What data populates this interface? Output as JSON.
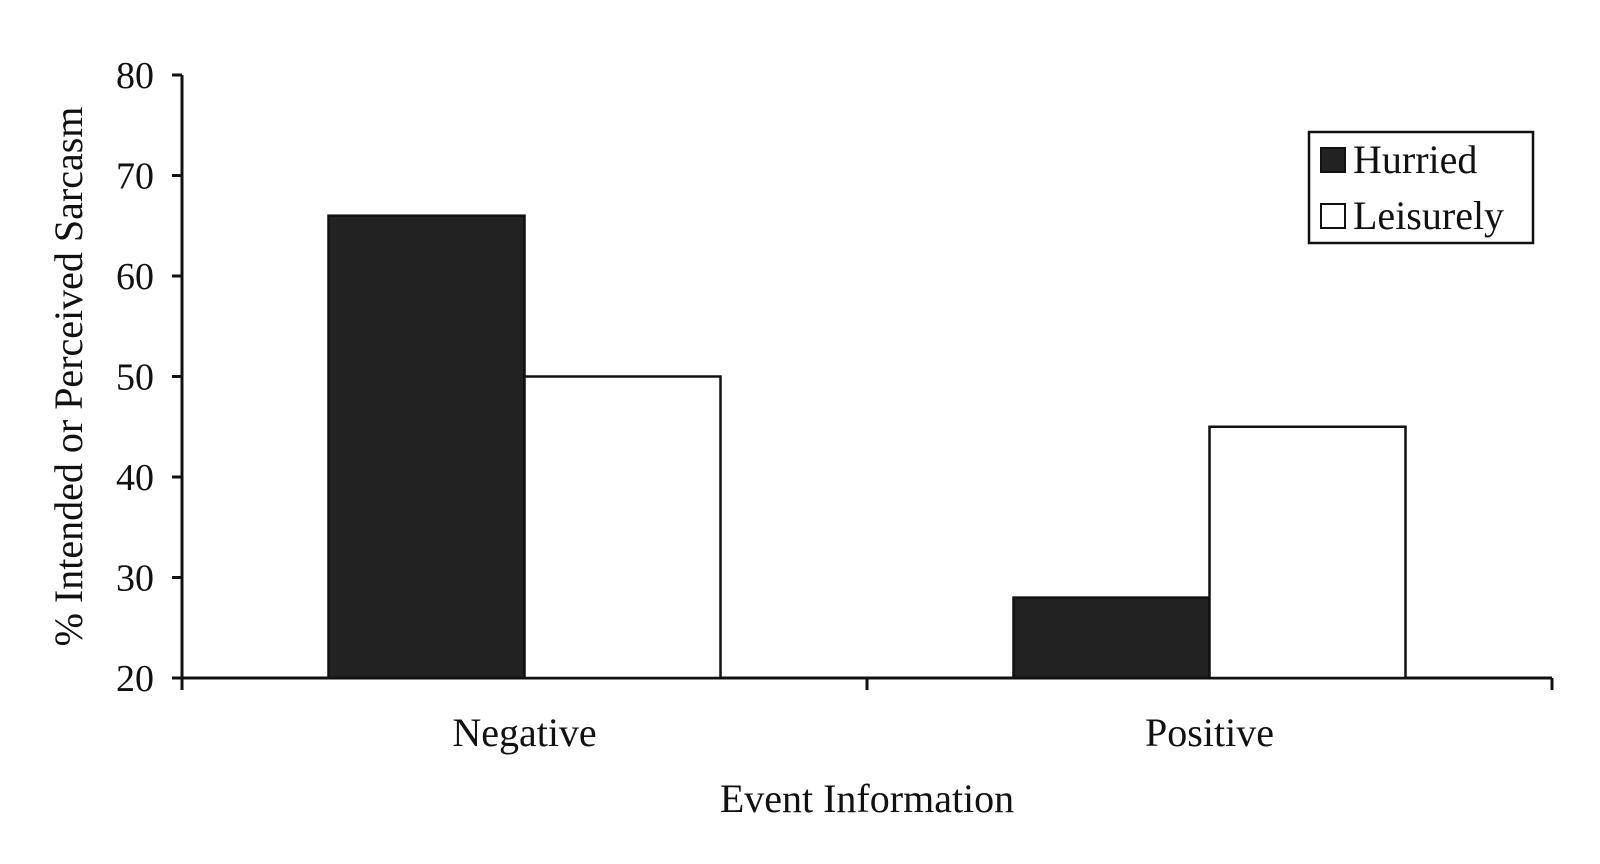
{
  "chart_data": {
    "type": "bar",
    "categories": [
      "Negative",
      "Positive"
    ],
    "series": [
      {
        "name": "Hurried",
        "values": [
          66,
          28
        ],
        "color": "#222222"
      },
      {
        "name": "Leisurely",
        "values": [
          50,
          45
        ],
        "color": "#ffffff"
      }
    ],
    "xlabel": "Event Information",
    "ylabel": "% Intended or Perceived Sarcasm",
    "ylim": [
      20,
      80
    ],
    "yticks": [
      20,
      30,
      40,
      50,
      60,
      70,
      80
    ],
    "grid": false,
    "legend": "top-right"
  }
}
